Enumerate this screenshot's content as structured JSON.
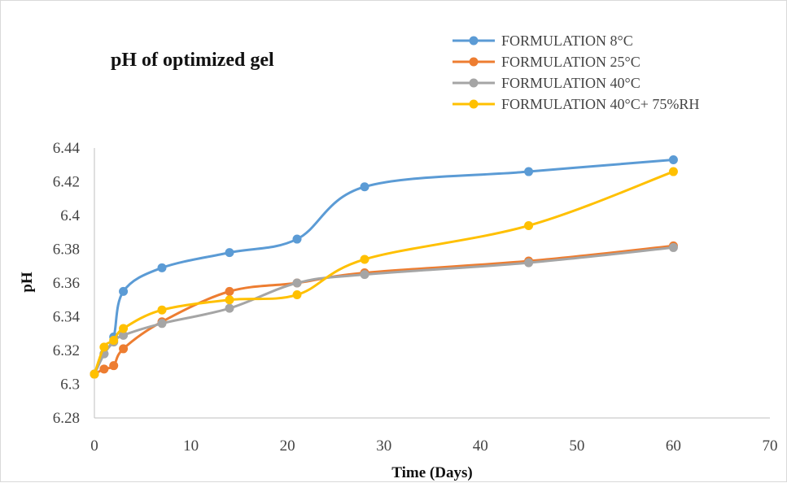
{
  "chart_data": {
    "type": "line",
    "title": "pH of optimized  gel",
    "xlabel": "Time  (Days)",
    "ylabel": "pH",
    "xlim": [
      0,
      70
    ],
    "ylim": [
      6.28,
      6.44
    ],
    "x_ticks": [
      0,
      10,
      20,
      30,
      40,
      50,
      60,
      70
    ],
    "y_ticks": [
      6.28,
      6.3,
      6.32,
      6.34,
      6.36,
      6.38,
      6.4,
      6.42,
      6.44
    ],
    "y_tick_labels": [
      "6.28",
      "6.3",
      "6.32",
      "6.34",
      "6.36",
      "6.38",
      "6.4",
      "6.42",
      "6.44"
    ],
    "grid": false,
    "smooth": true,
    "legend_position": "top-right",
    "series": [
      {
        "name": "FORMULATION 8°C",
        "color": "#5b9bd5",
        "x": [
          0,
          1,
          2,
          3,
          7,
          14,
          21,
          28,
          45,
          60
        ],
        "y": [
          6.306,
          6.318,
          6.328,
          6.355,
          6.369,
          6.378,
          6.386,
          6.417,
          6.426,
          6.433
        ]
      },
      {
        "name": "FORMULATION 25°C",
        "color": "#ed7d31",
        "x": [
          0,
          1,
          2,
          3,
          7,
          14,
          21,
          28,
          45,
          60
        ],
        "y": [
          6.306,
          6.309,
          6.311,
          6.321,
          6.337,
          6.355,
          6.36,
          6.366,
          6.373,
          6.382
        ]
      },
      {
        "name": "FORMULATION 40°C",
        "color": "#a5a5a5",
        "x": [
          0,
          1,
          2,
          3,
          7,
          14,
          21,
          28,
          45,
          60
        ],
        "y": [
          6.306,
          6.318,
          6.325,
          6.329,
          6.336,
          6.345,
          6.36,
          6.365,
          6.372,
          6.381
        ]
      },
      {
        "name": "FORMULATION 40°C+ 75%RH",
        "color": "#ffc000",
        "x": [
          0,
          1,
          2,
          3,
          7,
          14,
          21,
          28,
          45,
          60
        ],
        "y": [
          6.306,
          6.322,
          6.326,
          6.333,
          6.344,
          6.35,
          6.353,
          6.374,
          6.394,
          6.426
        ]
      }
    ]
  }
}
